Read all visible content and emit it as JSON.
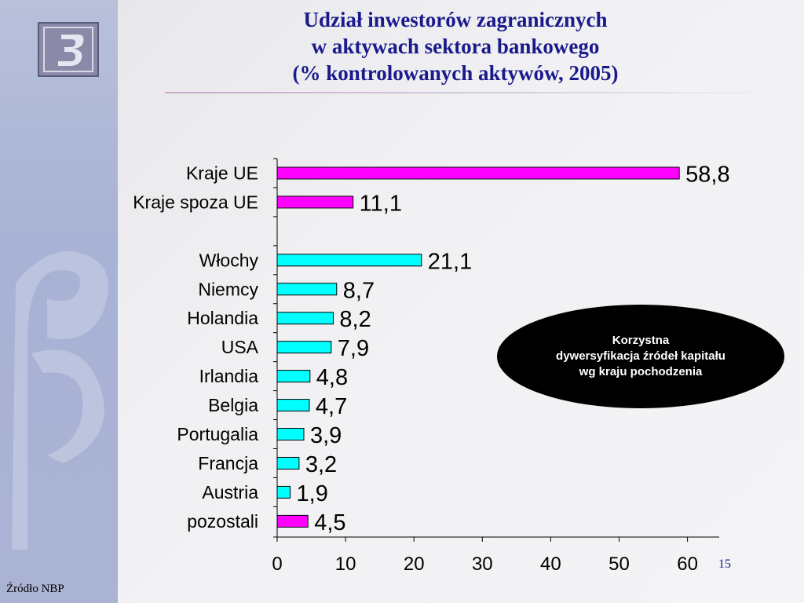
{
  "title": {
    "line1": "Udział inwestorów zagranicznych",
    "line2": "w aktywach sektora bankowego",
    "line3": "(% kontrolowanych aktywów, 2005)"
  },
  "callout": {
    "line1": "Korzystna",
    "line2": "dywersyfikacja źródeł kapitału",
    "line3": "wg kraju pochodzenia"
  },
  "source": "Źródło NBP",
  "page_number": "15",
  "colors": {
    "magenta_bar": "#ff00ff",
    "cyan_bar": "#00ffff",
    "title": "#1a1a8c",
    "callout_bg": "#000000"
  },
  "chart_data": {
    "type": "bar",
    "orientation": "horizontal",
    "title": "",
    "xlabel": "",
    "ylabel": "",
    "xlim": [
      0,
      65
    ],
    "xticks": [
      0,
      10,
      20,
      30,
      40,
      50,
      60
    ],
    "grid": false,
    "legend": "none",
    "categories": [
      "Kraje UE",
      "Kraje spoza UE",
      "",
      "Włochy",
      "Niemcy",
      "Holandia",
      "USA",
      "Irlandia",
      "Belgia",
      "Portugalia",
      "Francja",
      "Austria",
      "pozostali"
    ],
    "values": [
      58.8,
      11.1,
      null,
      21.1,
      8.7,
      8.2,
      7.9,
      4.8,
      4.7,
      3.9,
      3.2,
      1.9,
      4.5
    ],
    "value_labels": [
      "58,8",
      "11,1",
      "",
      "21,1",
      "8,7",
      "8,2",
      "7,9",
      "4,8",
      "4,7",
      "3,9",
      "3,2",
      "1,9",
      "4,5"
    ],
    "bar_colors": [
      "magenta",
      "magenta",
      "",
      "cyan",
      "cyan",
      "cyan",
      "cyan",
      "cyan",
      "cyan",
      "cyan",
      "cyan",
      "cyan",
      "magenta"
    ]
  }
}
